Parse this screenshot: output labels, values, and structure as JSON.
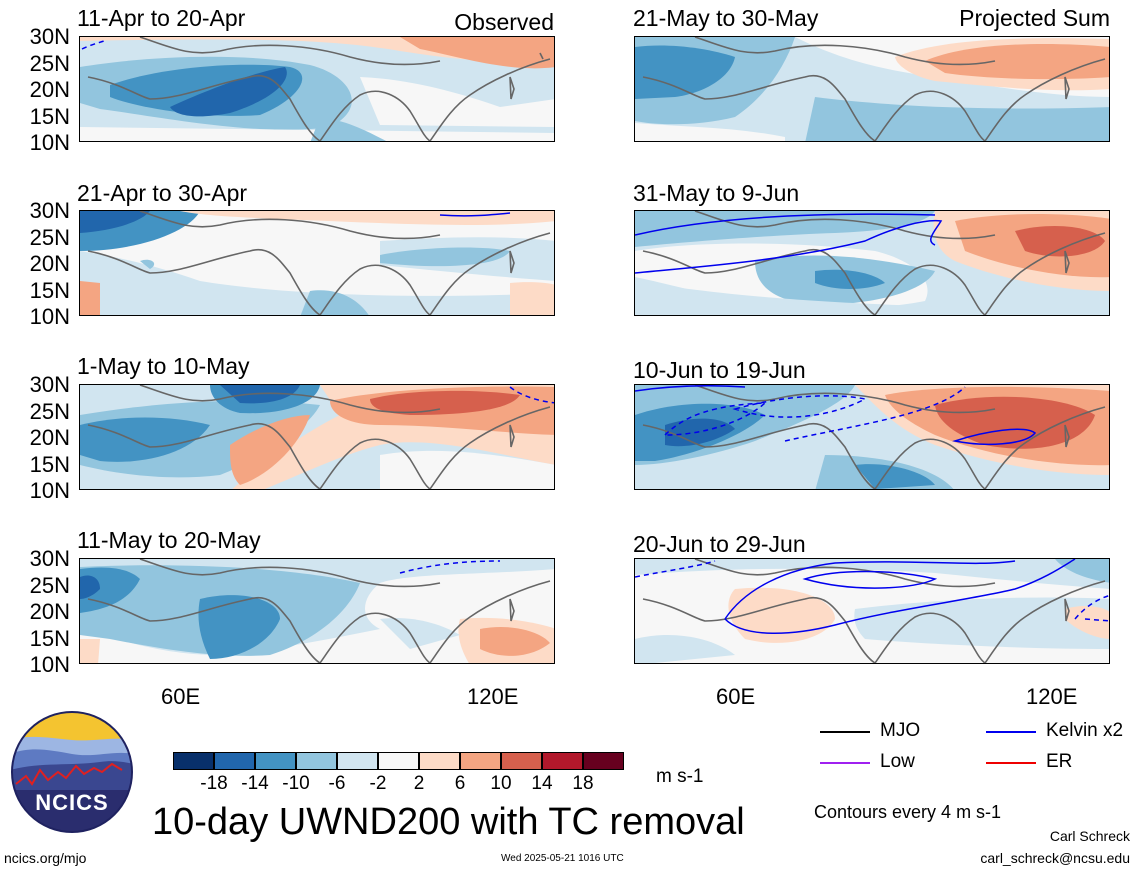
{
  "observed_label": "Observed",
  "projected_label": "Projected Sum",
  "left_panels": [
    {
      "title": "11-Apr to 20-Apr"
    },
    {
      "title": "21-Apr to 30-Apr"
    },
    {
      "title": "1-May to 10-May"
    },
    {
      "title": "11-May to 20-May"
    }
  ],
  "right_panels": [
    {
      "title": "21-May to 30-May"
    },
    {
      "title": "31-May to 9-Jun"
    },
    {
      "title": "10-Jun to 19-Jun"
    },
    {
      "title": "20-Jun to 29-Jun"
    }
  ],
  "lat_labels": [
    "30N",
    "25N",
    "20N",
    "15N",
    "10N"
  ],
  "lon_labels": [
    "60E",
    "120E"
  ],
  "colorbar": {
    "labels": [
      "-18",
      "-14",
      "-10",
      "-6",
      "-2",
      "2",
      "6",
      "10",
      "14",
      "18"
    ],
    "colors": [
      "#08306b",
      "#2166ac",
      "#4393c3",
      "#92c5de",
      "#d1e5f0",
      "#f7f7f7",
      "#fddbc7",
      "#f4a582",
      "#d6604d",
      "#b2182b",
      "#67001f"
    ],
    "units": "m s-1"
  },
  "legend": {
    "items": [
      {
        "label": "MJO",
        "color": "#000000"
      },
      {
        "label": "Kelvin x2",
        "color": "#0000ee"
      },
      {
        "label": "Low",
        "color": "#a020f0"
      },
      {
        "label": "ER",
        "color": "#ee0000"
      }
    ],
    "contours_note": "Contours every 4 m s-1"
  },
  "main_title": "10-day UWND200 with TC removal",
  "logo_text": "NCICS",
  "footer": {
    "website": "ncics.org/mjo",
    "timestamp": "Wed 2025-05-21 1016 UTC",
    "author": "Carl Schreck",
    "email": "carl_schreck@ncsu.edu"
  }
}
